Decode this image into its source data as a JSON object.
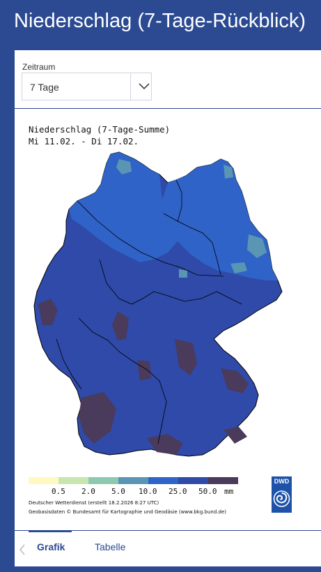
{
  "page": {
    "title": "Niederschlag (7-Tage-Rückblick)"
  },
  "period_selector": {
    "label": "Zeitraum",
    "selected": "7 Tage"
  },
  "map": {
    "title_line1": "Niederschlag (7-Tage-Summe)",
    "title_line2": "Mi 11.02. - Di 17.02.",
    "legend": {
      "unit": "mm",
      "ticks": [
        "0.5",
        "2.0",
        "5.0",
        "10.0",
        "25.0",
        "50.0"
      ],
      "colors": [
        "#fff8c0",
        "#c9e6b0",
        "#8dc8b0",
        "#5a96b4",
        "#2f63c8",
        "#2f4aa8",
        "#4a3a5c"
      ]
    },
    "credit_line1": "Deutscher Wetterdienst (erstellt 18.2.2026 8:27 UTC)",
    "credit_line2": "Geobasisdaten © Bundesamt für Kartographie und Geodäsie (www.bkg.bund.de)",
    "logo_text": "DWD"
  },
  "tabs": [
    {
      "label": "Grafik",
      "active": true
    },
    {
      "label": "Tabelle",
      "active": false
    }
  ]
}
